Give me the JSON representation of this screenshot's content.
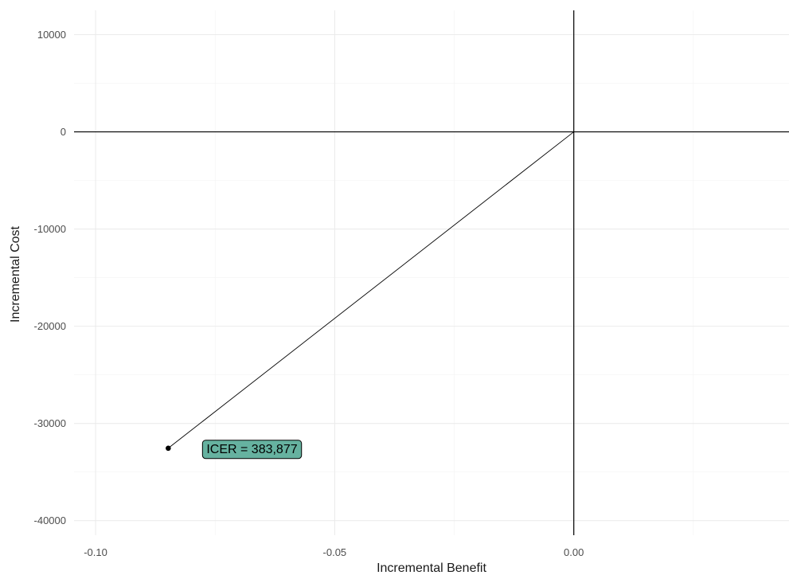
{
  "chart_data": {
    "type": "scatter",
    "xlabel": "Incremental Benefit",
    "ylabel": "Incremental Cost",
    "xlim": [
      -0.1045,
      0.045
    ],
    "ylim": [
      -41500,
      12500
    ],
    "x_ticks": [
      -0.1,
      -0.05,
      0.0
    ],
    "x_tick_labels": [
      "-0.10",
      "-0.05",
      "0.00"
    ],
    "x_minor_ticks": [
      -0.075,
      -0.025,
      0.025
    ],
    "y_ticks": [
      -40000,
      -30000,
      -20000,
      -10000,
      0,
      10000
    ],
    "y_tick_labels": [
      "-40000",
      "-30000",
      "-20000",
      "-10000",
      "0",
      "10000"
    ],
    "y_minor_ticks": [
      -35000,
      -25000,
      -15000,
      -5000,
      5000
    ],
    "grid": true,
    "reference_lines": {
      "x": 0,
      "y": 0
    },
    "points": [
      {
        "x": -0.0848,
        "y": -32550,
        "label": "ICER = 383,877"
      }
    ],
    "segment": {
      "from": [
        0,
        0
      ],
      "to": [
        -0.0848,
        -32550
      ]
    },
    "label_fill_color": "#66b2a0",
    "label_border_color": "#000000"
  }
}
